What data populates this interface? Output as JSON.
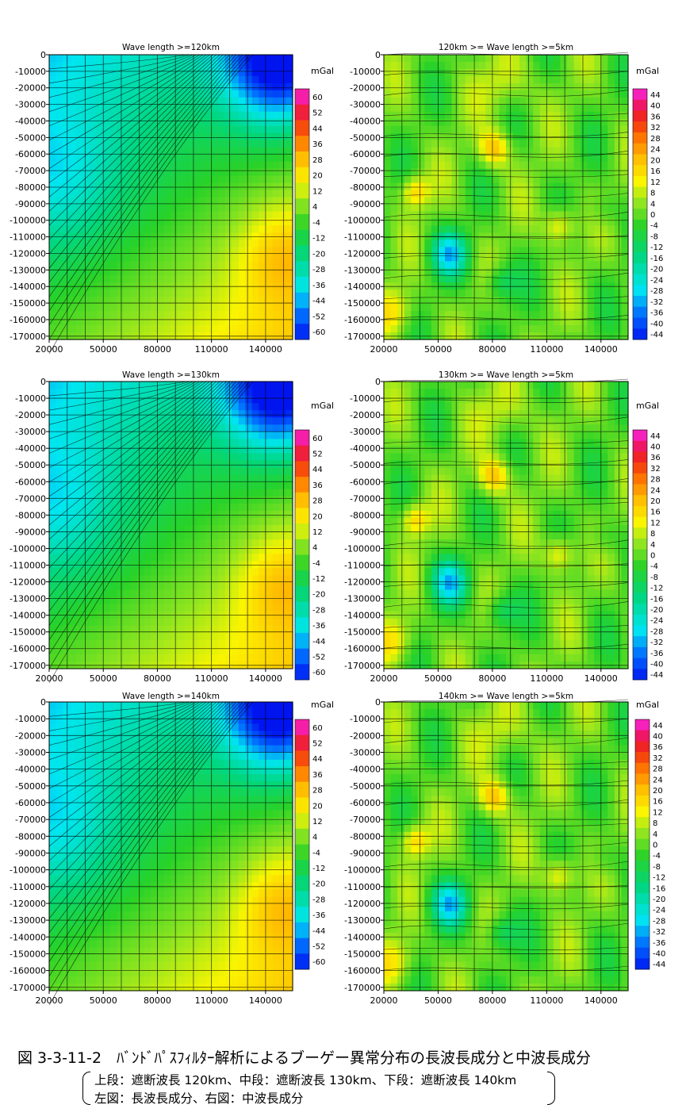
{
  "caption": {
    "title": "図 3-3-11-2　ﾊﾞﾝﾄﾞﾊﾟｽﾌｨﾙﾀｰ解析によるブーゲー異常分布の長波長成分と中波長成分",
    "line1": "上段：遮断波長 120km、中段：遮断波長 130km、下段：遮断波長 140km",
    "line2": "左図：長波長成分、右図：中波長成分"
  },
  "chart_data": [
    {
      "type": "heatmap",
      "title": "Wave length >=120km",
      "unit": "mGal",
      "x_ticks": [
        20000,
        50000,
        80000,
        110000,
        140000
      ],
      "y_ticks": [
        0,
        -10000,
        -20000,
        -30000,
        -40000,
        -50000,
        -60000,
        -70000,
        -80000,
        -90000,
        -100000,
        -110000,
        -120000,
        -130000,
        -140000,
        -150000,
        -160000,
        -170000
      ],
      "xlim": [
        20000,
        155000
      ],
      "ylim": [
        -172000,
        0
      ],
      "colorbar_ticks": [
        60,
        52,
        44,
        36,
        28,
        20,
        12,
        4,
        -4,
        -12,
        -20,
        -28,
        -36,
        -44,
        -52,
        -60
      ],
      "colorbar_range": [
        -60,
        64
      ],
      "grid": true,
      "contours": true
    },
    {
      "type": "heatmap",
      "title": "120km >= Wave length >=5km",
      "unit": "mGal",
      "x_ticks": [
        20000,
        50000,
        80000,
        110000,
        140000
      ],
      "y_ticks": [
        0,
        -10000,
        -20000,
        -30000,
        -40000,
        -50000,
        -60000,
        -70000,
        -80000,
        -90000,
        -100000,
        -110000,
        -120000,
        -130000,
        -140000,
        -150000,
        -160000,
        -170000
      ],
      "xlim": [
        20000,
        155000
      ],
      "ylim": [
        -172000,
        0
      ],
      "colorbar_ticks": [
        44,
        40,
        36,
        32,
        28,
        24,
        20,
        16,
        12,
        8,
        4,
        0,
        -4,
        -8,
        -12,
        -16,
        -20,
        -24,
        -28,
        -32,
        -36,
        -40,
        -44
      ],
      "colorbar_range": [
        -44,
        48
      ],
      "grid": true,
      "contours": true
    },
    {
      "type": "heatmap",
      "title": "Wave length >=130km",
      "unit": "mGal",
      "x_ticks": [
        20000,
        50000,
        80000,
        110000,
        140000
      ],
      "y_ticks": [
        0,
        -10000,
        -20000,
        -30000,
        -40000,
        -50000,
        -60000,
        -70000,
        -80000,
        -90000,
        -100000,
        -110000,
        -120000,
        -130000,
        -140000,
        -150000,
        -160000,
        -170000
      ],
      "xlim": [
        20000,
        155000
      ],
      "ylim": [
        -172000,
        0
      ],
      "colorbar_ticks": [
        60,
        52,
        44,
        36,
        28,
        20,
        12,
        4,
        -4,
        -12,
        -20,
        -28,
        -36,
        -44,
        -52,
        -60
      ],
      "colorbar_range": [
        -60,
        64
      ],
      "grid": true,
      "contours": true
    },
    {
      "type": "heatmap",
      "title": "130km >= Wave length >=5km",
      "unit": "mGal",
      "x_ticks": [
        20000,
        50000,
        80000,
        110000,
        140000
      ],
      "y_ticks": [
        0,
        -10000,
        -20000,
        -30000,
        -40000,
        -50000,
        -60000,
        -70000,
        -80000,
        -90000,
        -100000,
        -110000,
        -120000,
        -130000,
        -140000,
        -150000,
        -160000,
        -170000
      ],
      "xlim": [
        20000,
        155000
      ],
      "ylim": [
        -172000,
        0
      ],
      "colorbar_ticks": [
        44,
        40,
        36,
        32,
        28,
        24,
        20,
        16,
        12,
        8,
        4,
        0,
        -4,
        -8,
        -12,
        -16,
        -20,
        -24,
        -28,
        -32,
        -36,
        -40,
        -44
      ],
      "colorbar_range": [
        -44,
        48
      ],
      "grid": true,
      "contours": true
    },
    {
      "type": "heatmap",
      "title": "Wave length >=140km",
      "unit": "mGal",
      "x_ticks": [
        20000,
        50000,
        80000,
        110000,
        140000
      ],
      "y_ticks": [
        0,
        -10000,
        -20000,
        -30000,
        -40000,
        -50000,
        -60000,
        -70000,
        -80000,
        -90000,
        -100000,
        -110000,
        -120000,
        -130000,
        -140000,
        -150000,
        -160000,
        -170000
      ],
      "xlim": [
        20000,
        155000
      ],
      "ylim": [
        -172000,
        0
      ],
      "colorbar_ticks": [
        60,
        52,
        44,
        36,
        28,
        20,
        12,
        4,
        -4,
        -12,
        -20,
        -28,
        -36,
        -44,
        -52,
        -60
      ],
      "colorbar_range": [
        -60,
        64
      ],
      "grid": true,
      "contours": true
    },
    {
      "type": "heatmap",
      "title": "140km >= Wave length >=5km",
      "unit": "mGal",
      "x_ticks": [
        20000,
        50000,
        80000,
        110000,
        140000
      ],
      "y_ticks": [
        0,
        -10000,
        -20000,
        -30000,
        -40000,
        -50000,
        -60000,
        -70000,
        -80000,
        -90000,
        -100000,
        -110000,
        -120000,
        -130000,
        -140000,
        -150000,
        -160000,
        -170000
      ],
      "xlim": [
        20000,
        155000
      ],
      "ylim": [
        -172000,
        0
      ],
      "colorbar_ticks": [
        44,
        40,
        36,
        32,
        28,
        24,
        20,
        16,
        12,
        8,
        4,
        0,
        -4,
        -8,
        -12,
        -16,
        -20,
        -24,
        -28,
        -32,
        -36,
        -40,
        -44
      ],
      "colorbar_range": [
        -44,
        48
      ],
      "grid": true,
      "contours": true
    }
  ]
}
